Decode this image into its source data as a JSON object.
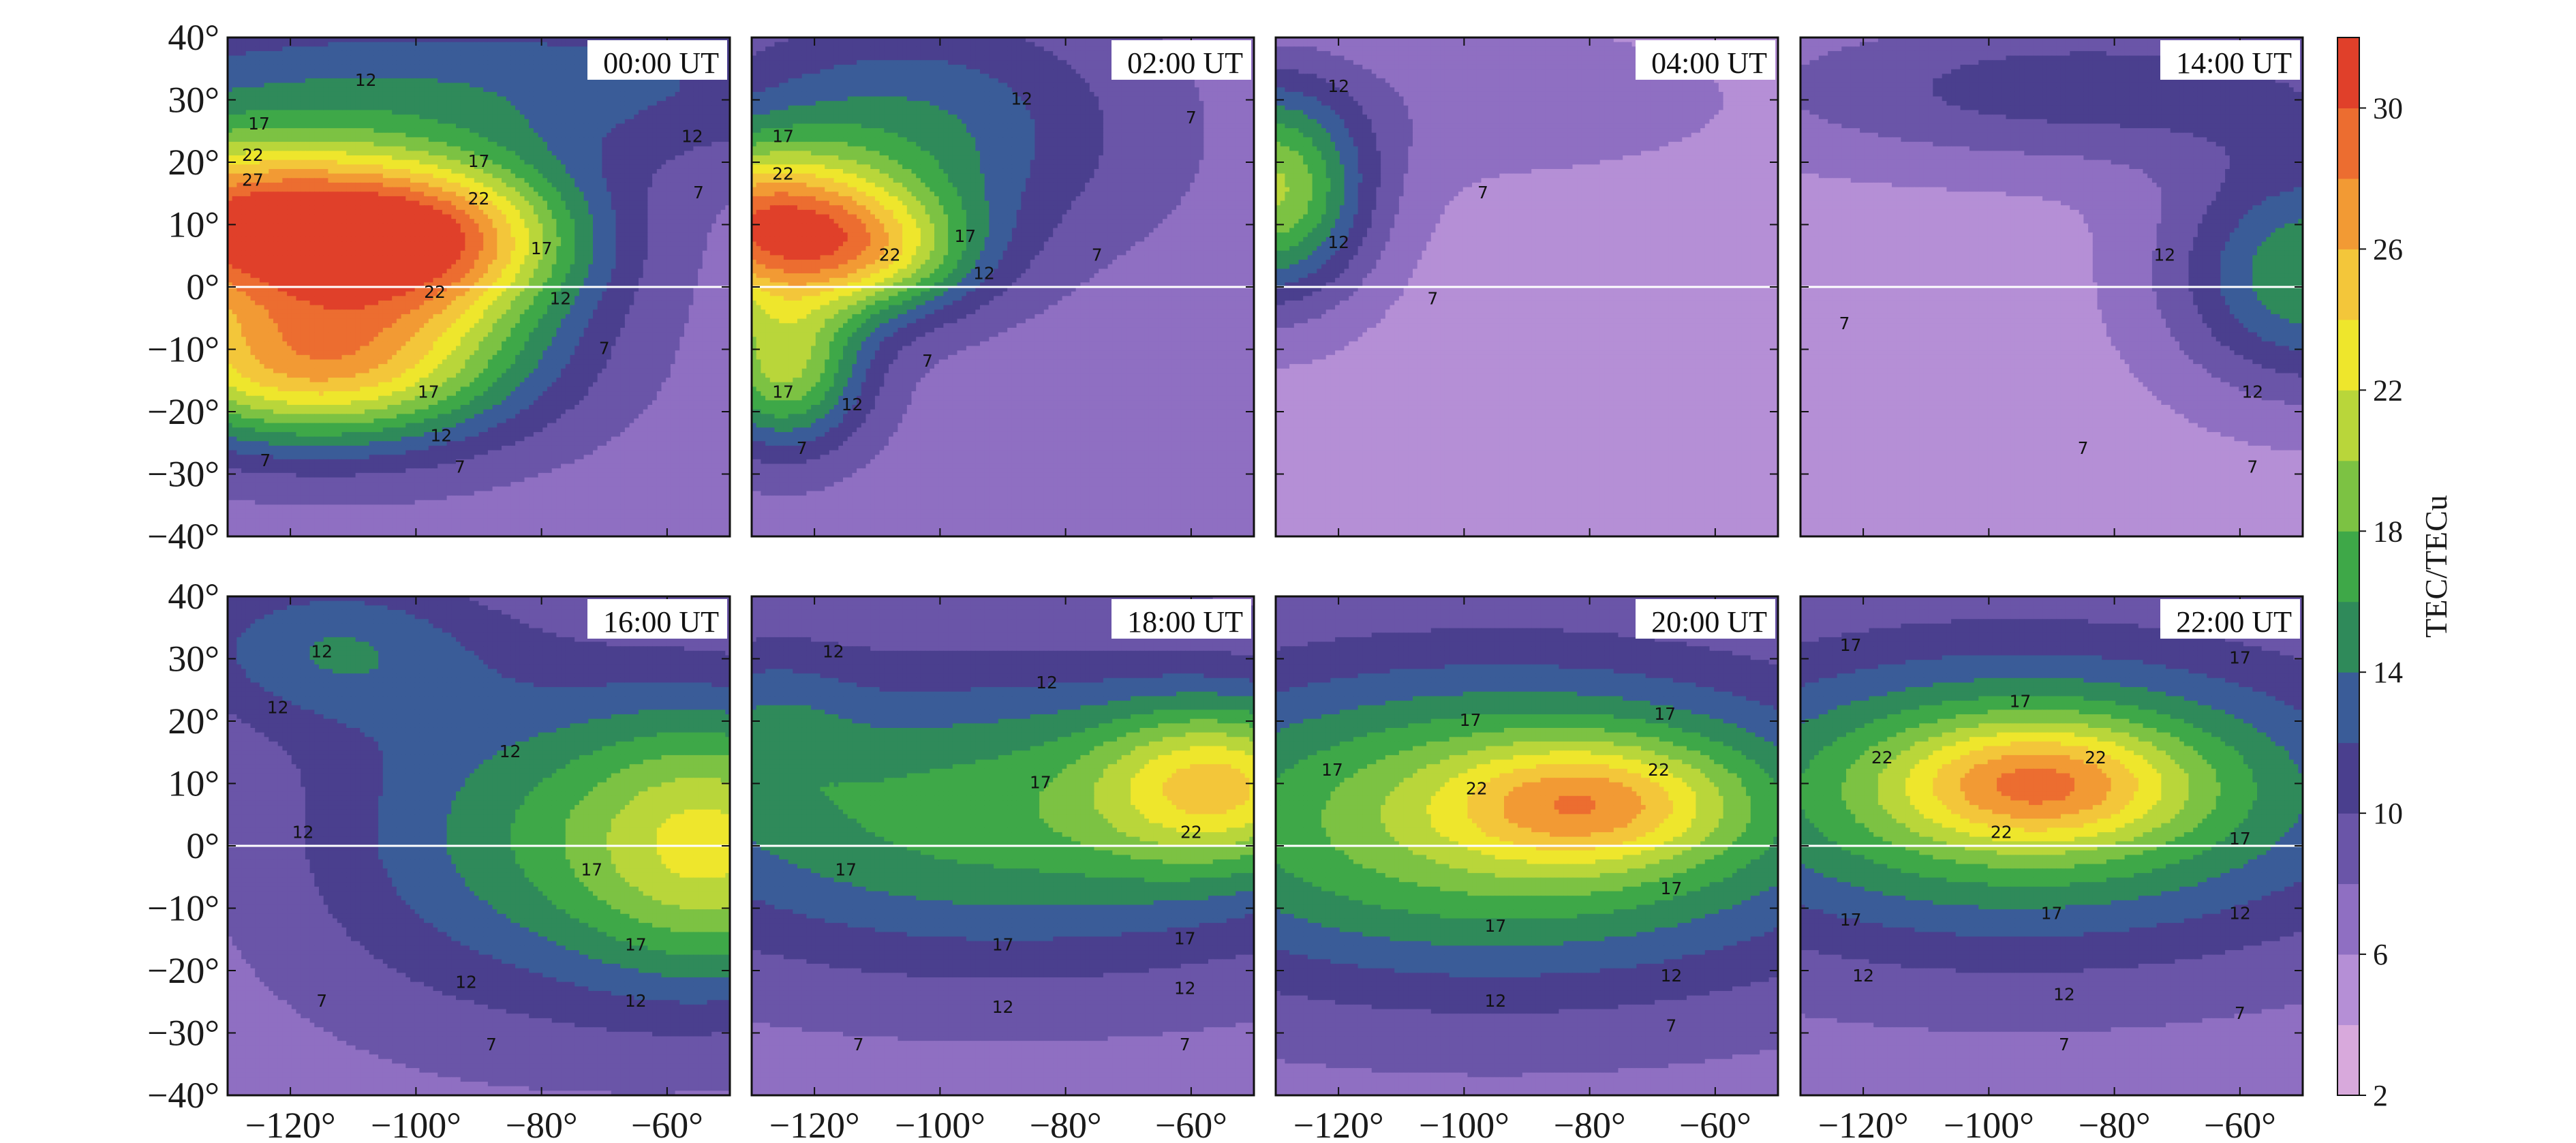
{
  "chart_data": {
    "type": "heatmap",
    "description_units": "TEC maps over longitude/latitude at eight UT times",
    "x_axis": {
      "range": [
        -130,
        -50
      ],
      "ticks": [
        -120,
        -100,
        -80,
        -60
      ],
      "tick_labels": [
        "−120°",
        "−100°",
        "−80°",
        "−60°"
      ]
    },
    "y_axis": {
      "range": [
        -40,
        40
      ],
      "ticks": [
        40,
        30,
        20,
        10,
        0,
        -10,
        -20,
        -30,
        -40
      ],
      "tick_labels": [
        "40°",
        "30°",
        "20°",
        "10°",
        "0°",
        "−10°",
        "−20°",
        "−30°",
        "−40°"
      ]
    },
    "colorbar": {
      "label": "TEC/TECu",
      "range": [
        2,
        32
      ],
      "ticks": [
        2,
        6,
        10,
        14,
        18,
        22,
        26,
        30
      ],
      "colors": [
        "#d8a9dc",
        "#b58fd6",
        "#8f6fc2",
        "#6a55a8",
        "#4a3f8e",
        "#3a5c98",
        "#2f8a5a",
        "#3ea848",
        "#7cc243",
        "#b9d63a",
        "#eee62c",
        "#f3c63a",
        "#f29a34",
        "#ec6d30",
        "#e0402a"
      ]
    },
    "panels": [
      {
        "label": "00:00 UT",
        "background": 7,
        "blobs": [
          {
            "lon": -92,
            "lat": 33,
            "amp": 6,
            "slon": 55,
            "slat": 10
          },
          {
            "lon": -128,
            "lat": 10,
            "amp": 22,
            "slon": 22,
            "slat": 10
          },
          {
            "lon": -95,
            "lat": 8,
            "amp": 13,
            "slon": 16,
            "slat": 9
          },
          {
            "lon": -118,
            "lat": -13,
            "amp": 16,
            "slon": 22,
            "slat": 9
          },
          {
            "lon": -100,
            "lat": -2,
            "amp": 5,
            "slon": 20,
            "slat": 14
          }
        ],
        "contour_labels": [
          {
            "lon": -108,
            "lat": 33,
            "text": "12"
          },
          {
            "lon": -125,
            "lat": 26,
            "text": "17"
          },
          {
            "lon": -126,
            "lat": 21,
            "text": "22"
          },
          {
            "lon": -126,
            "lat": 17,
            "text": "27"
          },
          {
            "lon": -90,
            "lat": 20,
            "text": "17"
          },
          {
            "lon": -90,
            "lat": 14,
            "text": "22"
          },
          {
            "lon": -97,
            "lat": -1,
            "text": "22"
          },
          {
            "lon": -80,
            "lat": 6,
            "text": "17"
          },
          {
            "lon": -77,
            "lat": -2,
            "text": "12"
          },
          {
            "lon": -70,
            "lat": -10,
            "text": "7"
          },
          {
            "lon": -56,
            "lat": 24,
            "text": "12"
          },
          {
            "lon": -55,
            "lat": 15,
            "text": "7"
          },
          {
            "lon": -98,
            "lat": -17,
            "text": "17"
          },
          {
            "lon": -96,
            "lat": -24,
            "text": "12"
          },
          {
            "lon": -124,
            "lat": -28,
            "text": "7"
          },
          {
            "lon": -93,
            "lat": -29,
            "text": "7"
          }
        ]
      },
      {
        "label": "02:00 UT",
        "background": 7,
        "blobs": [
          {
            "lon": -105,
            "lat": 25,
            "amp": 7,
            "slon": 24,
            "slat": 14
          },
          {
            "lon": -130,
            "lat": 10,
            "amp": 19,
            "slon": 16,
            "slat": 9
          },
          {
            "lon": -110,
            "lat": 5,
            "amp": 9,
            "slon": 12,
            "slat": 7
          },
          {
            "lon": -125,
            "lat": -13,
            "amp": 13,
            "slon": 9,
            "slat": 9
          }
        ],
        "contour_labels": [
          {
            "lon": -87,
            "lat": 30,
            "text": "12"
          },
          {
            "lon": -125,
            "lat": 24,
            "text": "17"
          },
          {
            "lon": -125,
            "lat": 18,
            "text": "22"
          },
          {
            "lon": -108,
            "lat": 5,
            "text": "22"
          },
          {
            "lon": -96,
            "lat": 8,
            "text": "17"
          },
          {
            "lon": -93,
            "lat": 2,
            "text": "12"
          },
          {
            "lon": -60,
            "lat": 27,
            "text": "7"
          },
          {
            "lon": -75,
            "lat": 5,
            "text": "7"
          },
          {
            "lon": -102,
            "lat": -12,
            "text": "7"
          },
          {
            "lon": -125,
            "lat": -17,
            "text": "17"
          },
          {
            "lon": -114,
            "lat": -19,
            "text": "12"
          },
          {
            "lon": -122,
            "lat": -26,
            "text": "7"
          }
        ]
      },
      {
        "label": "04:00 UT",
        "background": 5,
        "blobs": [
          {
            "lon": -131,
            "lat": 15,
            "amp": 15,
            "slon": 11,
            "slat": 12
          },
          {
            "lon": -100,
            "lat": 30,
            "amp": 2,
            "slon": 35,
            "slat": 10
          }
        ],
        "contour_labels": [
          {
            "lon": -120,
            "lat": 32,
            "text": "12"
          },
          {
            "lon": -120,
            "lat": 7,
            "text": "12"
          },
          {
            "lon": -97,
            "lat": 15,
            "text": "7"
          },
          {
            "lon": -105,
            "lat": -2,
            "text": "7"
          }
        ]
      },
      {
        "label": "14:00 UT",
        "background": 5,
        "blobs": [
          {
            "lon": -85,
            "lat": 32,
            "amp": 6,
            "slon": 40,
            "slat": 9
          },
          {
            "lon": -48,
            "lat": 2,
            "amp": 11,
            "slon": 16,
            "slat": 13
          }
        ],
        "contour_labels": [
          {
            "lon": -72,
            "lat": 5,
            "text": "12"
          },
          {
            "lon": -58,
            "lat": -17,
            "text": "12"
          },
          {
            "lon": -123,
            "lat": -6,
            "text": "7"
          },
          {
            "lon": -85,
            "lat": -26,
            "text": "7"
          },
          {
            "lon": -58,
            "lat": -29,
            "text": "7"
          }
        ]
      },
      {
        "label": "16:00 UT",
        "background": 7,
        "blobs": [
          {
            "lon": -115,
            "lat": 32,
            "amp": 6,
            "slon": 18,
            "slat": 9
          },
          {
            "lon": -50,
            "lat": 0,
            "amp": 13,
            "slon": 18,
            "slat": 16
          },
          {
            "lon": -85,
            "lat": 2,
            "amp": 7,
            "slon": 25,
            "slat": 20
          }
        ],
        "contour_labels": [
          {
            "lon": -115,
            "lat": 31,
            "text": "12"
          },
          {
            "lon": -122,
            "lat": 22,
            "text": "12"
          },
          {
            "lon": -85,
            "lat": 15,
            "text": "12"
          },
          {
            "lon": -118,
            "lat": 2,
            "text": "12"
          },
          {
            "lon": -72,
            "lat": -4,
            "text": "17"
          },
          {
            "lon": -65,
            "lat": -16,
            "text": "17"
          },
          {
            "lon": -92,
            "lat": -22,
            "text": "12"
          },
          {
            "lon": -65,
            "lat": -25,
            "text": "12"
          },
          {
            "lon": -115,
            "lat": -25,
            "text": "7"
          },
          {
            "lon": -88,
            "lat": -32,
            "text": "7"
          }
        ]
      },
      {
        "label": "18:00 UT",
        "background": 7,
        "blobs": [
          {
            "lon": -90,
            "lat": 5,
            "amp": 10,
            "slon": 45,
            "slat": 17
          },
          {
            "lon": -55,
            "lat": 10,
            "amp": 11,
            "slon": 14,
            "slat": 9
          },
          {
            "lon": -128,
            "lat": 20,
            "amp": 3,
            "slon": 10,
            "slat": 10
          }
        ],
        "contour_labels": [
          {
            "lon": -117,
            "lat": 31,
            "text": "12"
          },
          {
            "lon": -83,
            "lat": 26,
            "text": "12"
          },
          {
            "lon": -84,
            "lat": 10,
            "text": "17"
          },
          {
            "lon": -60,
            "lat": 2,
            "text": "22"
          },
          {
            "lon": -115,
            "lat": -4,
            "text": "17"
          },
          {
            "lon": -90,
            "lat": -16,
            "text": "17"
          },
          {
            "lon": -61,
            "lat": -15,
            "text": "17"
          },
          {
            "lon": -90,
            "lat": -26,
            "text": "12"
          },
          {
            "lon": -61,
            "lat": -23,
            "text": "12"
          },
          {
            "lon": -113,
            "lat": -32,
            "text": "7"
          },
          {
            "lon": -61,
            "lat": -32,
            "text": "7"
          }
        ]
      },
      {
        "label": "20:00 UT",
        "background": 7,
        "blobs": [
          {
            "lon": -95,
            "lat": 4,
            "amp": 13,
            "slon": 45,
            "slat": 18
          },
          {
            "lon": -80,
            "lat": 7,
            "amp": 9,
            "slon": 16,
            "slat": 7
          }
        ],
        "contour_labels": [
          {
            "lon": -99,
            "lat": 20,
            "text": "17"
          },
          {
            "lon": -68,
            "lat": 21,
            "text": "17"
          },
          {
            "lon": -121,
            "lat": 12,
            "text": "17"
          },
          {
            "lon": -98,
            "lat": 9,
            "text": "22"
          },
          {
            "lon": -69,
            "lat": 12,
            "text": "22"
          },
          {
            "lon": -67,
            "lat": -7,
            "text": "17"
          },
          {
            "lon": -95,
            "lat": -13,
            "text": "17"
          },
          {
            "lon": -95,
            "lat": -25,
            "text": "12"
          },
          {
            "lon": -67,
            "lat": -21,
            "text": "12"
          },
          {
            "lon": -67,
            "lat": -29,
            "text": "7"
          }
        ]
      },
      {
        "label": "22:00 UT",
        "background": 7,
        "blobs": [
          {
            "lon": -95,
            "lat": 8,
            "amp": 12,
            "slon": 42,
            "slat": 17
          },
          {
            "lon": -92,
            "lat": 10,
            "amp": 10,
            "slon": 16,
            "slat": 7
          }
        ],
        "contour_labels": [
          {
            "lon": -122,
            "lat": 32,
            "text": "17"
          },
          {
            "lon": -60,
            "lat": 30,
            "text": "17"
          },
          {
            "lon": -95,
            "lat": 23,
            "text": "17"
          },
          {
            "lon": -117,
            "lat": 14,
            "text": "22"
          },
          {
            "lon": -83,
            "lat": 14,
            "text": "22"
          },
          {
            "lon": -98,
            "lat": 2,
            "text": "22"
          },
          {
            "lon": -60,
            "lat": 1,
            "text": "17"
          },
          {
            "lon": -122,
            "lat": -12,
            "text": "17"
          },
          {
            "lon": -90,
            "lat": -11,
            "text": "17"
          },
          {
            "lon": -60,
            "lat": -11,
            "text": "12"
          },
          {
            "lon": -120,
            "lat": -21,
            "text": "12"
          },
          {
            "lon": -88,
            "lat": -24,
            "text": "12"
          },
          {
            "lon": -60,
            "lat": -27,
            "text": "7"
          },
          {
            "lon": -88,
            "lat": -32,
            "text": "7"
          }
        ]
      }
    ]
  }
}
